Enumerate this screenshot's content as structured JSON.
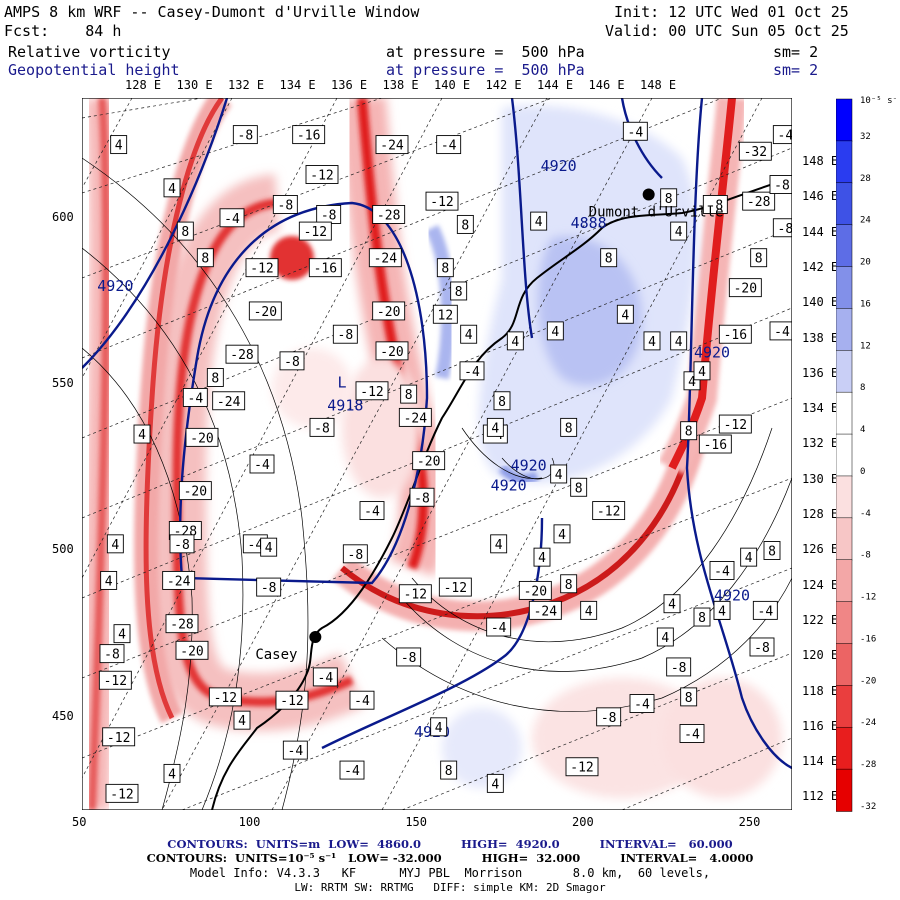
{
  "header": {
    "line1_left": "AMPS 8 km WRF -- Casey-Dumont d'Urville Window",
    "line1_right": "Init: 12 UTC Wed 01 Oct 25",
    "line2_left": "Fcst:    84 h",
    "line2_right": "Valid: 00 UTC Sun 05 Oct 25",
    "field1_name": "Relative vorticity",
    "field1_level": "at pressure =  500 hPa",
    "field1_sm": "sm= 2",
    "field2_name": "Geopotential height",
    "field2_level": "at pressure =  500 hPa",
    "field2_sm": "sm= 2"
  },
  "axes": {
    "top_lon_labels": [
      "128 E",
      "130 E",
      "132 E",
      "134 E",
      "136 E",
      "138 E",
      "140 E",
      "142 E",
      "144 E",
      "146 E",
      "148 E"
    ],
    "right_lon_labels": [
      "148 E",
      "146 E",
      "144 E",
      "142 E",
      "140 E",
      "138 E",
      "136 E",
      "134 E",
      "132 E",
      "130 E",
      "128 E",
      "126 E",
      "124 E",
      "122 E",
      "120 E",
      "118 E",
      "116 E",
      "114 E",
      "112 E"
    ],
    "x_ticks": [
      50,
      100,
      150,
      200,
      250
    ],
    "y_ticks": [
      600,
      550,
      500,
      450
    ],
    "xlim": [
      50,
      263
    ],
    "ylim": [
      422,
      636
    ]
  },
  "colorbar": {
    "unit_label": "10⁻⁵ s⁻¹",
    "levels": [
      32,
      28,
      24,
      20,
      16,
      12,
      8,
      4,
      0,
      -4,
      -8,
      -12,
      -16,
      -20,
      -24,
      -28,
      -32
    ]
  },
  "map": {
    "stations": [
      {
        "name": "Casey",
        "x": 120,
        "y": 474
      },
      {
        "name": "Dumont d'Urville",
        "x": 220,
        "y": 607
      }
    ],
    "height_labels": [
      {
        "text": "4920",
        "x": 60,
        "y": 578
      },
      {
        "text": "4920",
        "x": 155,
        "y": 444
      },
      {
        "text": "4920",
        "x": 184,
        "y": 524
      },
      {
        "text": "4920",
        "x": 178,
        "y": 518
      },
      {
        "text": "4920",
        "x": 193,
        "y": 614
      },
      {
        "text": "4920",
        "x": 239,
        "y": 558
      },
      {
        "text": "4920",
        "x": 245,
        "y": 485
      },
      {
        "text": "4888",
        "x": 202,
        "y": 597
      },
      {
        "text": "4918",
        "x": 129,
        "y": 542
      }
    ],
    "low_marker": {
      "text": "L",
      "x": 128,
      "y": 549
    },
    "vort_labels": [
      {
        "t": "4",
        "x": 61,
        "y": 622
      },
      {
        "t": "-8",
        "x": 99,
        "y": 625
      },
      {
        "t": "-16",
        "x": 118,
        "y": 625
      },
      {
        "t": "-24",
        "x": 143,
        "y": 622
      },
      {
        "t": "-4",
        "x": 160,
        "y": 622
      },
      {
        "t": "4",
        "x": 77,
        "y": 609
      },
      {
        "t": "-12",
        "x": 122,
        "y": 613
      },
      {
        "t": "-8",
        "x": 111,
        "y": 604
      },
      {
        "t": "-8",
        "x": 124,
        "y": 601
      },
      {
        "t": "-28",
        "x": 142,
        "y": 601
      },
      {
        "t": "-12",
        "x": 158,
        "y": 605
      },
      {
        "t": "8",
        "x": 81,
        "y": 596
      },
      {
        "t": "-4",
        "x": 95,
        "y": 600
      },
      {
        "t": "-12",
        "x": 120,
        "y": 596
      },
      {
        "t": "8",
        "x": 165,
        "y": 598
      },
      {
        "t": "8",
        "x": 87,
        "y": 588
      },
      {
        "t": "-12",
        "x": 104,
        "y": 585
      },
      {
        "t": "-16",
        "x": 123,
        "y": 585
      },
      {
        "t": "-24",
        "x": 141,
        "y": 588
      },
      {
        "t": "8",
        "x": 159,
        "y": 585
      },
      {
        "t": "-20",
        "x": 105,
        "y": 572
      },
      {
        "t": "-20",
        "x": 142,
        "y": 572
      },
      {
        "t": "12",
        "x": 159,
        "y": 571
      },
      {
        "t": "8",
        "x": 163,
        "y": 578
      },
      {
        "t": "-8",
        "x": 129,
        "y": 565
      },
      {
        "t": "4",
        "x": 166,
        "y": 565
      },
      {
        "t": "-28",
        "x": 98,
        "y": 559
      },
      {
        "t": "-20",
        "x": 143,
        "y": 560
      },
      {
        "t": "-8",
        "x": 113,
        "y": 557
      },
      {
        "t": "8",
        "x": 90,
        "y": 552
      },
      {
        "t": "-12",
        "x": 137,
        "y": 548
      },
      {
        "t": "-4",
        "x": 167,
        "y": 554
      },
      {
        "t": "-4",
        "x": 84,
        "y": 546
      },
      {
        "t": "-24",
        "x": 94,
        "y": 545
      },
      {
        "t": "8",
        "x": 148,
        "y": 547
      },
      {
        "t": "8",
        "x": 176,
        "y": 545
      },
      {
        "t": "4",
        "x": 68,
        "y": 535
      },
      {
        "t": "-20",
        "x": 86,
        "y": 534
      },
      {
        "t": "-8",
        "x": 122,
        "y": 537
      },
      {
        "t": "-24",
        "x": 150,
        "y": 540
      },
      {
        "t": "-4",
        "x": 174,
        "y": 535
      },
      {
        "t": "-4",
        "x": 104,
        "y": 526
      },
      {
        "t": "-20",
        "x": 154,
        "y": 527
      },
      {
        "t": "-20",
        "x": 84,
        "y": 518
      },
      {
        "t": "-8",
        "x": 152,
        "y": 516
      },
      {
        "t": "-4",
        "x": 137,
        "y": 512
      },
      {
        "t": "-28",
        "x": 81,
        "y": 506
      },
      {
        "t": "-4",
        "x": 102,
        "y": 502
      },
      {
        "t": "-8",
        "x": 132,
        "y": 499
      },
      {
        "t": "-12",
        "x": 150,
        "y": 487
      },
      {
        "t": "4",
        "x": 60,
        "y": 502
      },
      {
        "t": "-8",
        "x": 80,
        "y": 502
      },
      {
        "t": "4",
        "x": 106,
        "y": 501
      },
      {
        "t": "4",
        "x": 175,
        "y": 502
      },
      {
        "t": "4",
        "x": 58,
        "y": 491
      },
      {
        "t": "-24",
        "x": 79,
        "y": 491
      },
      {
        "t": "-8",
        "x": 106,
        "y": 489
      },
      {
        "t": "4",
        "x": 62,
        "y": 475
      },
      {
        "t": "-28",
        "x": 80,
        "y": 478
      },
      {
        "t": "-8",
        "x": 59,
        "y": 469
      },
      {
        "t": "-20",
        "x": 83,
        "y": 470
      },
      {
        "t": "-12",
        "x": 60,
        "y": 461
      },
      {
        "t": "-4",
        "x": 123,
        "y": 462
      },
      {
        "t": "-8",
        "x": 148,
        "y": 468
      },
      {
        "t": "-4",
        "x": 175,
        "y": 477
      },
      {
        "t": "-12",
        "x": 93,
        "y": 456
      },
      {
        "t": "-12",
        "x": 113,
        "y": 455
      },
      {
        "t": "-4",
        "x": 134,
        "y": 455
      },
      {
        "t": "4",
        "x": 98,
        "y": 449
      },
      {
        "t": "4",
        "x": 157,
        "y": 447
      },
      {
        "t": "-12",
        "x": 61,
        "y": 444
      },
      {
        "t": "4",
        "x": 77,
        "y": 433
      },
      {
        "t": "-4",
        "x": 131,
        "y": 434
      },
      {
        "t": "8",
        "x": 160,
        "y": 434
      },
      {
        "t": "4",
        "x": 174,
        "y": 430
      },
      {
        "t": "-12",
        "x": 62,
        "y": 427
      },
      {
        "t": "-4",
        "x": 114,
        "y": 440
      },
      {
        "t": "-12",
        "x": 200,
        "y": 435
      },
      {
        "t": "-8",
        "x": 208,
        "y": 450
      },
      {
        "t": "-4",
        "x": 218,
        "y": 454
      },
      {
        "t": "-4",
        "x": 233,
        "y": 445
      },
      {
        "t": "-8",
        "x": 229,
        "y": 465
      },
      {
        "t": "8",
        "x": 232,
        "y": 456
      },
      {
        "t": "4",
        "x": 225,
        "y": 474
      },
      {
        "t": "4",
        "x": 227,
        "y": 484
      },
      {
        "t": "8",
        "x": 236,
        "y": 480
      },
      {
        "t": "8",
        "x": 242,
        "y": 482
      },
      {
        "t": "-4",
        "x": 242,
        "y": 494
      },
      {
        "t": "4",
        "x": 242,
        "y": 482
      },
      {
        "t": "-4",
        "x": 255,
        "y": 482
      },
      {
        "t": "-8",
        "x": 254,
        "y": 471
      },
      {
        "t": "4",
        "x": 250,
        "y": 498
      },
      {
        "t": "8",
        "x": 257,
        "y": 500
      },
      {
        "t": "-24",
        "x": 189,
        "y": 482
      },
      {
        "t": "-12",
        "x": 162,
        "y": 489
      },
      {
        "t": "-20",
        "x": 186,
        "y": 488
      },
      {
        "t": "8",
        "x": 196,
        "y": 490
      },
      {
        "t": "4",
        "x": 202,
        "y": 482
      },
      {
        "t": "4",
        "x": 188,
        "y": 498
      },
      {
        "t": "4",
        "x": 194,
        "y": 505
      },
      {
        "t": "-12",
        "x": 208,
        "y": 512
      },
      {
        "t": "8",
        "x": 199,
        "y": 519
      },
      {
        "t": "4",
        "x": 193,
        "y": 523
      },
      {
        "t": "4",
        "x": 174,
        "y": 537
      },
      {
        "t": "8",
        "x": 196,
        "y": 537
      },
      {
        "t": "-16",
        "x": 240,
        "y": 532
      },
      {
        "t": "-12",
        "x": 246,
        "y": 538
      },
      {
        "t": "4",
        "x": 233,
        "y": 551
      },
      {
        "t": "8",
        "x": 232,
        "y": 536
      },
      {
        "t": "4",
        "x": 236,
        "y": 554
      },
      {
        "t": "4",
        "x": 229,
        "y": 563
      },
      {
        "t": "-16",
        "x": 246,
        "y": 565
      },
      {
        "t": "4",
        "x": 221,
        "y": 563
      },
      {
        "t": "4",
        "x": 213,
        "y": 571
      },
      {
        "t": "4",
        "x": 192,
        "y": 566
      },
      {
        "t": "4",
        "x": 180,
        "y": 563
      },
      {
        "t": "-20",
        "x": 249,
        "y": 579
      },
      {
        "t": "8",
        "x": 253,
        "y": 588
      },
      {
        "t": "8",
        "x": 208,
        "y": 588
      },
      {
        "t": "4",
        "x": 187,
        "y": 599
      },
      {
        "t": "8",
        "x": 226,
        "y": 606
      },
      {
        "t": "-28",
        "x": 253,
        "y": 605
      },
      {
        "t": "-8",
        "x": 260,
        "y": 610
      },
      {
        "t": "-8",
        "x": 240,
        "y": 604
      },
      {
        "t": "-32",
        "x": 252,
        "y": 620
      },
      {
        "t": "-4",
        "x": 261,
        "y": 625
      },
      {
        "t": "-4",
        "x": 216,
        "y": 626
      },
      {
        "t": "4",
        "x": 229,
        "y": 596
      },
      {
        "t": "-8",
        "x": 261,
        "y": 597
      },
      {
        "t": "-4",
        "x": 260,
        "y": 566
      }
    ]
  },
  "footer": {
    "line1": "CONTOURS:  UNITS=m  LOW=  4860.0          HIGH=  4920.0          INTERVAL=   60.000",
    "line2": "CONTOURS:  UNITS=10⁻⁵ s⁻¹   LOW= -32.000          HIGH=  32.000          INTERVAL=   4.0000",
    "line3": "Model Info: V4.3.3   KF      MYJ PBL  Morrison       8.0 km,  60 levels,",
    "line4": "LW: RRTM SW: RRTMG   DIFF: simple KM: 2D Smagor"
  },
  "colors": {
    "contour_blue": "#0a1a8c",
    "coast": "#000000"
  }
}
